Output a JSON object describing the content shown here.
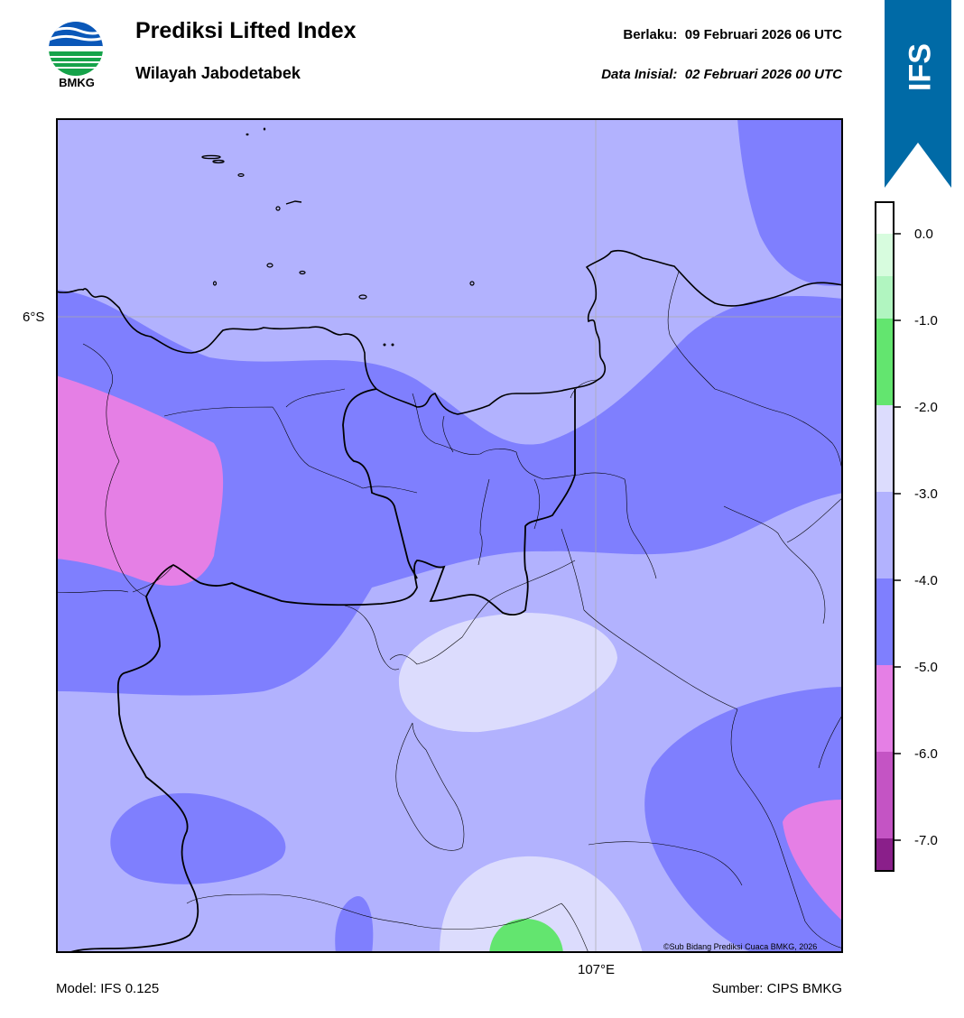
{
  "header": {
    "title": "Prediksi Lifted Index",
    "subtitle": "Wilayah Jabodetabek",
    "valid_label": "Berlaku:",
    "valid_value": "09 Februari 2026 06 UTC",
    "init_label": "Data Inisial:",
    "init_value": "02 Februari 2026 00 UTC"
  },
  "logo": {
    "text": "BMKG",
    "icon": "bmkg-logo"
  },
  "ribbon": {
    "text": "IFS",
    "color": "#006aa6"
  },
  "map": {
    "lat_label": "6°S",
    "lon_label": "107°E",
    "copyright": "©Sub Bidang Prediksi Cuaca BMKG, 2026"
  },
  "colorbar": {
    "levels": [
      "0.0",
      "-1.0",
      "-2.0",
      "-3.0",
      "-4.0",
      "-5.0",
      "-6.0",
      "-7.0"
    ],
    "colors": {
      "above_0": "#ffffff",
      "0_to_-0.5": "#d7fcde",
      "-0.5_to_-1": "#b1f5c0",
      "-1_to_-2": "#63e56f",
      "-2_to_-3": "#dcdcfd",
      "-3_to_-4": "#b2b2fe",
      "-4_to_-5": "#7f7ffe",
      "-5_to_-6": "#e57fe5",
      "-6_to_-7": "#c454c4",
      "-7_to_-7.5": "#8a1f8a"
    }
  },
  "footer": {
    "model": "Model: IFS 0.125",
    "source": "Sumber: CIPS BMKG"
  }
}
